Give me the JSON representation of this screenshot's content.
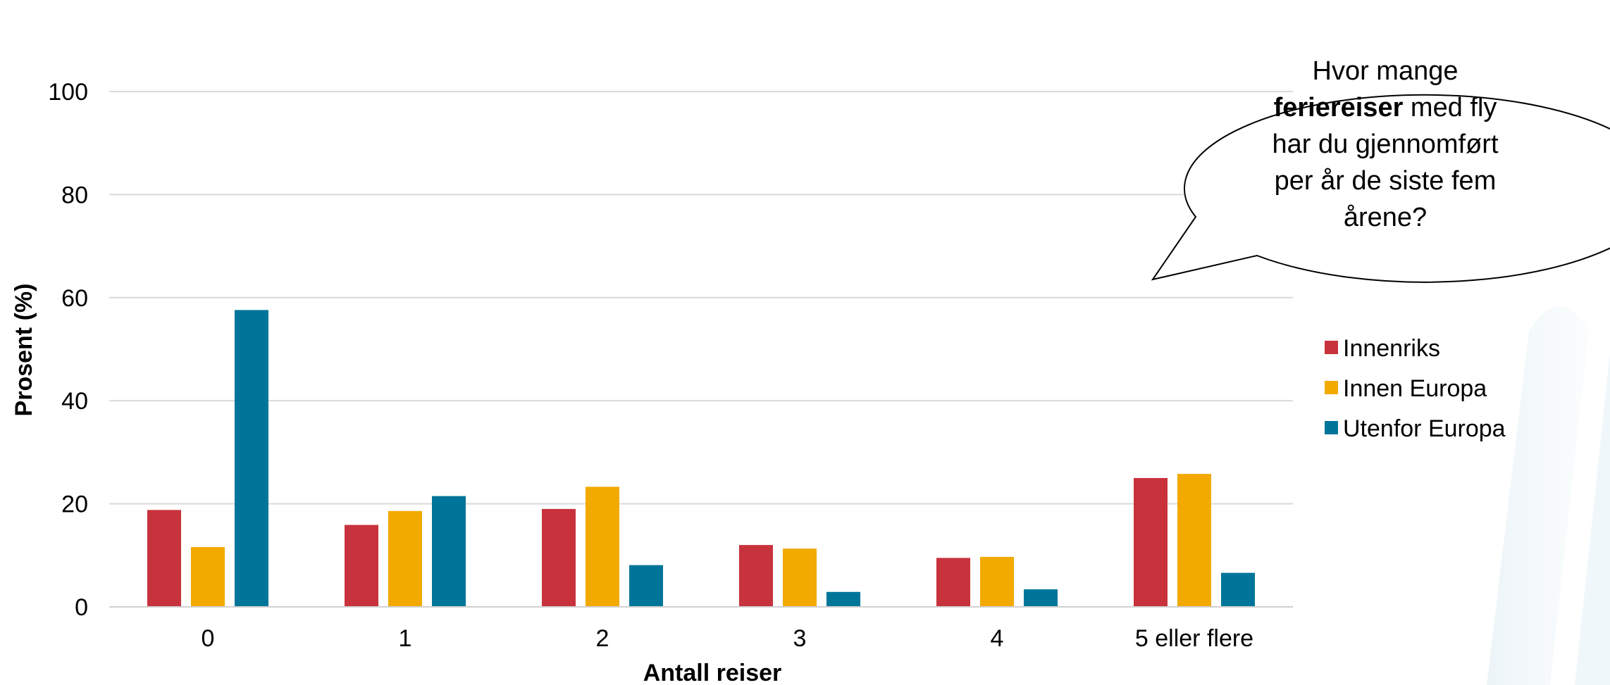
{
  "chart_data": {
    "type": "bar",
    "xlabel": "Antall reiser",
    "ylabel": "Prosent (%)",
    "ylim": [
      0,
      100
    ],
    "yticks": [
      0,
      20,
      40,
      60,
      80,
      100
    ],
    "grid": true,
    "legend_position": "right",
    "categories": [
      "0",
      "1",
      "2",
      "3",
      "4",
      "5 eller flere"
    ],
    "series": [
      {
        "name": "Innenriks",
        "color": "#C8323C",
        "values": [
          18.8,
          15.9,
          19.0,
          12.0,
          9.5,
          25.0
        ]
      },
      {
        "name": "Innen Europa",
        "color": "#F2A900",
        "values": [
          11.6,
          18.6,
          23.3,
          11.3,
          9.7,
          25.8
        ]
      },
      {
        "name": "Utenfor Europa",
        "color": "#00759A",
        "values": [
          57.6,
          21.5,
          8.1,
          2.9,
          3.4,
          6.6
        ]
      }
    ],
    "annotation": {
      "lines": [
        [
          {
            "text": "Hvor mange",
            "bold": false
          }
        ],
        [
          {
            "text": "feriereiser",
            "bold": true
          },
          {
            "text": " med fly",
            "bold": false
          }
        ],
        [
          {
            "text": "har du gjennomført",
            "bold": false
          }
        ],
        [
          {
            "text": "per år de siste fem",
            "bold": false
          }
        ],
        [
          {
            "text": "årene?",
            "bold": false
          }
        ]
      ]
    }
  }
}
